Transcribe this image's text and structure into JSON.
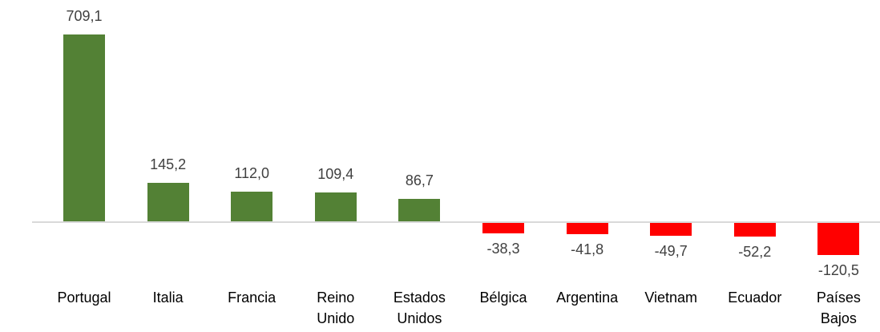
{
  "chart_data": {
    "type": "bar",
    "title": "",
    "xlabel": "",
    "ylabel": "",
    "grid": false,
    "legend": null,
    "categories": [
      "Portugal",
      "Italia",
      "Francia",
      "Reino Unido",
      "Estados Unidos",
      "Bélgica",
      "Argentina",
      "Vietnam",
      "Ecuador",
      "Países Bajos"
    ],
    "values": [
      709.1,
      145.2,
      112.0,
      109.4,
      86.7,
      -38.3,
      -41.8,
      -49.7,
      -52.2,
      -120.5
    ],
    "value_labels": [
      "709,1",
      "145,2",
      "112,0",
      "109,4",
      "86,7",
      "-38,3",
      "-41,8",
      "-49,7",
      "-52,2",
      "-120,5"
    ],
    "category_lines": [
      [
        "Portugal"
      ],
      [
        "Italia"
      ],
      [
        "Francia"
      ],
      [
        "Reino",
        "Unido"
      ],
      [
        "Estados",
        "Unidos"
      ],
      [
        "Bélgica"
      ],
      [
        "Argentina"
      ],
      [
        "Vietnam"
      ],
      [
        "Ecuador"
      ],
      [
        "Países",
        "Bajos"
      ]
    ],
    "colors": {
      "positive": "#538135",
      "negative": "#ff0000"
    },
    "ylim": [
      -120.5,
      709.1
    ]
  }
}
